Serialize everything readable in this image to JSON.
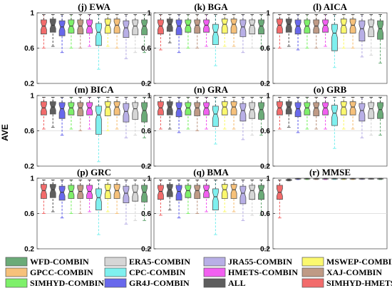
{
  "chart_data": {
    "type": "boxplot",
    "ylabel": "AVE",
    "ylim": [
      0.2,
      1.0
    ],
    "yticks": [
      "0.2",
      "0.6",
      "1"
    ],
    "series": [
      {
        "name": "WFD-COMBIN",
        "color": "#6bab78"
      },
      {
        "name": "GPCC-COMBIN",
        "color": "#f6c17a"
      },
      {
        "name": "SIMHYD-COMBIN",
        "color": "#7ef06a"
      },
      {
        "name": "ERA5-COMBIN",
        "color": "#d6d6d6"
      },
      {
        "name": "CPC-COMBIN",
        "color": "#7ff0ef"
      },
      {
        "name": "GR4J-COMBIN",
        "color": "#6868ec"
      },
      {
        "name": "JRA55-COMBIN",
        "color": "#b8afe6"
      },
      {
        "name": "HMETS-COMBIN",
        "color": "#f25ff0"
      },
      {
        "name": "ALL",
        "color": "#5e5e5e"
      },
      {
        "name": "MSWEP-COMBIN",
        "color": "#fbf86e"
      },
      {
        "name": "XAJ-COMBIN",
        "color": "#bf9a85"
      },
      {
        "name": "SIMHYD-HMETS",
        "color": "#f26b6b"
      }
    ],
    "box_order": [
      "SIMHYD-HMETS",
      "ALL",
      "GR4J-COMBIN",
      "SIMHYD-COMBIN",
      "XAJ-COMBIN",
      "HMETS-COMBIN",
      "CPC-COMBIN",
      "MSWEP-COMBIN",
      "GPCC-COMBIN",
      "JRA55-COMBIN",
      "ERA5-COMBIN",
      "WFD-COMBIN"
    ],
    "panels": [
      {
        "title": "(j) EWA",
        "boxes": [
          [
            0.6,
            0.76,
            0.85,
            0.92,
            0.98
          ],
          [
            0.62,
            0.78,
            0.86,
            0.93,
            0.98
          ],
          [
            0.55,
            0.74,
            0.84,
            0.91,
            0.98
          ],
          [
            0.6,
            0.77,
            0.85,
            0.92,
            0.98
          ],
          [
            0.6,
            0.76,
            0.85,
            0.92,
            0.98
          ],
          [
            0.62,
            0.77,
            0.85,
            0.92,
            0.98
          ],
          [
            0.36,
            0.63,
            0.78,
            0.88,
            0.98
          ],
          [
            0.62,
            0.77,
            0.86,
            0.93,
            0.98
          ],
          [
            0.6,
            0.77,
            0.86,
            0.93,
            0.98
          ],
          [
            0.48,
            0.72,
            0.83,
            0.91,
            0.98
          ],
          [
            0.55,
            0.75,
            0.85,
            0.92,
            0.98
          ],
          [
            0.55,
            0.75,
            0.85,
            0.92,
            0.98
          ]
        ]
      },
      {
        "title": "(k) BGA",
        "boxes": [
          [
            0.58,
            0.76,
            0.85,
            0.92,
            0.98
          ],
          [
            0.66,
            0.79,
            0.87,
            0.93,
            0.98
          ],
          [
            0.55,
            0.75,
            0.85,
            0.92,
            0.98
          ],
          [
            0.6,
            0.78,
            0.86,
            0.92,
            0.98
          ],
          [
            0.6,
            0.77,
            0.86,
            0.92,
            0.98
          ],
          [
            0.62,
            0.78,
            0.86,
            0.92,
            0.98
          ],
          [
            0.4,
            0.64,
            0.78,
            0.87,
            0.98
          ],
          [
            0.62,
            0.77,
            0.87,
            0.93,
            0.98
          ],
          [
            0.62,
            0.77,
            0.87,
            0.93,
            0.98
          ],
          [
            0.55,
            0.73,
            0.84,
            0.92,
            0.98
          ],
          [
            0.6,
            0.76,
            0.86,
            0.92,
            0.98
          ],
          [
            0.6,
            0.76,
            0.85,
            0.92,
            0.98
          ]
        ]
      },
      {
        "title": "(l) AICA",
        "boxes": [
          [
            0.6,
            0.77,
            0.86,
            0.93,
            0.98
          ],
          [
            0.62,
            0.78,
            0.87,
            0.93,
            0.98
          ],
          [
            0.58,
            0.76,
            0.85,
            0.92,
            0.98
          ],
          [
            0.6,
            0.77,
            0.85,
            0.92,
            0.98
          ],
          [
            0.6,
            0.77,
            0.85,
            0.92,
            0.98
          ],
          [
            0.62,
            0.78,
            0.86,
            0.92,
            0.98
          ],
          [
            0.38,
            0.57,
            0.77,
            0.87,
            0.98
          ],
          [
            0.6,
            0.77,
            0.86,
            0.93,
            0.98
          ],
          [
            0.6,
            0.77,
            0.86,
            0.93,
            0.98
          ],
          [
            0.5,
            0.68,
            0.82,
            0.91,
            0.98
          ],
          [
            0.52,
            0.73,
            0.84,
            0.92,
            0.98
          ],
          [
            0.43,
            0.7,
            0.82,
            0.91,
            0.98
          ]
        ]
      },
      {
        "title": "(m) BICA",
        "boxes": [
          [
            0.62,
            0.78,
            0.86,
            0.93,
            0.98
          ],
          [
            0.64,
            0.79,
            0.87,
            0.93,
            0.98
          ],
          [
            0.55,
            0.74,
            0.85,
            0.92,
            0.98
          ],
          [
            0.62,
            0.78,
            0.86,
            0.92,
            0.98
          ],
          [
            0.6,
            0.77,
            0.86,
            0.92,
            0.98
          ],
          [
            0.62,
            0.78,
            0.86,
            0.92,
            0.98
          ],
          [
            0.25,
            0.56,
            0.78,
            0.88,
            0.98
          ],
          [
            0.6,
            0.77,
            0.87,
            0.93,
            0.98
          ],
          [
            0.62,
            0.78,
            0.87,
            0.93,
            0.98
          ],
          [
            0.52,
            0.7,
            0.82,
            0.91,
            0.98
          ],
          [
            0.55,
            0.73,
            0.85,
            0.92,
            0.98
          ],
          [
            0.52,
            0.7,
            0.83,
            0.92,
            0.98
          ]
        ]
      },
      {
        "title": "(n) GRA",
        "boxes": [
          [
            0.62,
            0.78,
            0.86,
            0.93,
            0.98
          ],
          [
            0.62,
            0.78,
            0.87,
            0.93,
            0.98
          ],
          [
            0.58,
            0.76,
            0.85,
            0.92,
            0.98
          ],
          [
            0.62,
            0.78,
            0.86,
            0.92,
            0.98
          ],
          [
            0.6,
            0.77,
            0.86,
            0.92,
            0.98
          ],
          [
            0.62,
            0.78,
            0.86,
            0.92,
            0.98
          ],
          [
            0.45,
            0.65,
            0.79,
            0.88,
            0.98
          ],
          [
            0.62,
            0.78,
            0.87,
            0.93,
            0.98
          ],
          [
            0.62,
            0.78,
            0.87,
            0.93,
            0.98
          ],
          [
            0.5,
            0.71,
            0.83,
            0.91,
            0.98
          ],
          [
            0.55,
            0.74,
            0.84,
            0.92,
            0.98
          ],
          [
            0.55,
            0.73,
            0.84,
            0.92,
            0.98
          ]
        ]
      },
      {
        "title": "(o) GRB",
        "boxes": [
          [
            0.62,
            0.78,
            0.86,
            0.93,
            0.98
          ],
          [
            0.64,
            0.79,
            0.87,
            0.93,
            0.98
          ],
          [
            0.58,
            0.76,
            0.85,
            0.92,
            0.98
          ],
          [
            0.62,
            0.78,
            0.86,
            0.92,
            0.98
          ],
          [
            0.62,
            0.77,
            0.86,
            0.92,
            0.98
          ],
          [
            0.62,
            0.78,
            0.86,
            0.92,
            0.98
          ],
          [
            0.4,
            0.66,
            0.8,
            0.89,
            0.98
          ],
          [
            0.62,
            0.78,
            0.87,
            0.93,
            0.98
          ],
          [
            0.62,
            0.78,
            0.87,
            0.93,
            0.98
          ],
          [
            0.52,
            0.71,
            0.83,
            0.91,
            0.98
          ],
          [
            0.55,
            0.74,
            0.85,
            0.92,
            0.98
          ],
          [
            0.55,
            0.74,
            0.84,
            0.92,
            0.98
          ]
        ]
      },
      {
        "title": "(p) GRC",
        "boxes": [
          [
            0.6,
            0.77,
            0.86,
            0.93,
            0.98
          ],
          [
            0.62,
            0.78,
            0.87,
            0.93,
            0.98
          ],
          [
            0.55,
            0.75,
            0.84,
            0.91,
            0.98
          ],
          [
            0.6,
            0.77,
            0.85,
            0.92,
            0.98
          ],
          [
            0.6,
            0.77,
            0.85,
            0.92,
            0.98
          ],
          [
            0.62,
            0.77,
            0.85,
            0.92,
            0.98
          ],
          [
            0.36,
            0.64,
            0.78,
            0.88,
            0.98
          ],
          [
            0.62,
            0.77,
            0.86,
            0.93,
            0.98
          ],
          [
            0.6,
            0.77,
            0.86,
            0.93,
            0.98
          ],
          [
            0.48,
            0.72,
            0.83,
            0.91,
            0.98
          ],
          [
            0.52,
            0.74,
            0.84,
            0.92,
            0.98
          ],
          [
            0.52,
            0.73,
            0.84,
            0.92,
            0.98
          ]
        ]
      },
      {
        "title": "(q) BMA",
        "boxes": [
          [
            0.58,
            0.76,
            0.85,
            0.92,
            0.98
          ],
          [
            0.64,
            0.79,
            0.87,
            0.93,
            0.98
          ],
          [
            0.55,
            0.75,
            0.85,
            0.92,
            0.98
          ],
          [
            0.6,
            0.78,
            0.86,
            0.92,
            0.98
          ],
          [
            0.6,
            0.77,
            0.86,
            0.92,
            0.98
          ],
          [
            0.62,
            0.78,
            0.86,
            0.92,
            0.98
          ],
          [
            0.36,
            0.64,
            0.79,
            0.88,
            0.98
          ],
          [
            0.62,
            0.77,
            0.87,
            0.93,
            0.98
          ],
          [
            0.62,
            0.77,
            0.87,
            0.93,
            0.98
          ],
          [
            0.52,
            0.71,
            0.83,
            0.91,
            0.98
          ],
          [
            0.58,
            0.76,
            0.86,
            0.92,
            0.98
          ],
          [
            0.58,
            0.76,
            0.86,
            0.92,
            0.98
          ]
        ]
      },
      {
        "title": "(r) MMSE",
        "boxes": [
          [
            0.55,
            0.76,
            0.84,
            0.92,
            0.98
          ],
          [
            0.97,
            0.975,
            0.98,
            0.985,
            0.99
          ],
          [
            0.985,
            0.99,
            0.993,
            0.996,
            0.999
          ],
          [
            0.985,
            0.99,
            0.993,
            0.996,
            0.999
          ],
          [
            0.985,
            0.99,
            0.993,
            0.996,
            0.999
          ],
          [
            0.985,
            0.99,
            0.993,
            0.996,
            0.999
          ],
          [
            0.985,
            0.99,
            0.993,
            0.996,
            0.999
          ],
          [
            0.985,
            0.99,
            0.993,
            0.996,
            0.999
          ],
          [
            0.985,
            0.99,
            0.993,
            0.996,
            0.999
          ],
          [
            0.985,
            0.99,
            0.993,
            0.996,
            0.999
          ],
          [
            0.985,
            0.99,
            0.993,
            0.996,
            0.999
          ],
          [
            0.985,
            0.99,
            0.993,
            0.996,
            0.999
          ]
        ]
      }
    ],
    "legend": {
      "placement": "bottom",
      "rows": [
        [
          "WFD-COMBIN",
          "ERA5-COMBIN",
          "JRA55-COMBIN",
          "MSWEP-COMBIN"
        ],
        [
          "GPCC-COMBIN",
          "CPC-COMBIN",
          "HMETS-COMBIN",
          "XAJ-COMBIN"
        ],
        [
          "SIMHYD-COMBIN",
          "GR4J-COMBIN",
          "ALL",
          "SIMHYD-HMETS"
        ]
      ]
    },
    "grid": true
  }
}
